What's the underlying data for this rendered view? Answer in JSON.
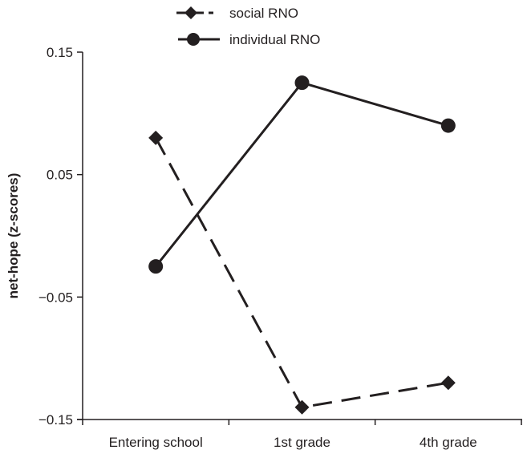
{
  "chart_data": {
    "type": "line",
    "title": "",
    "xlabel": "",
    "ylabel": "net-hope (z-scores)",
    "categories": [
      "Entering school",
      "1st grade",
      "4th grade"
    ],
    "ylim": [
      -0.15,
      0.15
    ],
    "yticks": [
      0.15,
      0.05,
      -0.05,
      -0.15
    ],
    "ytick_labels": [
      "0.15",
      "0.05",
      "−0.05",
      "−0.15"
    ],
    "grid": false,
    "legend_position": "top-center",
    "series": [
      {
        "name": "social RNO",
        "marker": "diamond",
        "line_style": "dashed",
        "values": [
          0.08,
          -0.14,
          -0.12
        ]
      },
      {
        "name": "individual RNO",
        "marker": "circle",
        "line_style": "solid",
        "values": [
          -0.025,
          0.125,
          0.09
        ]
      }
    ],
    "colors": {
      "ink": "#231f20"
    }
  }
}
